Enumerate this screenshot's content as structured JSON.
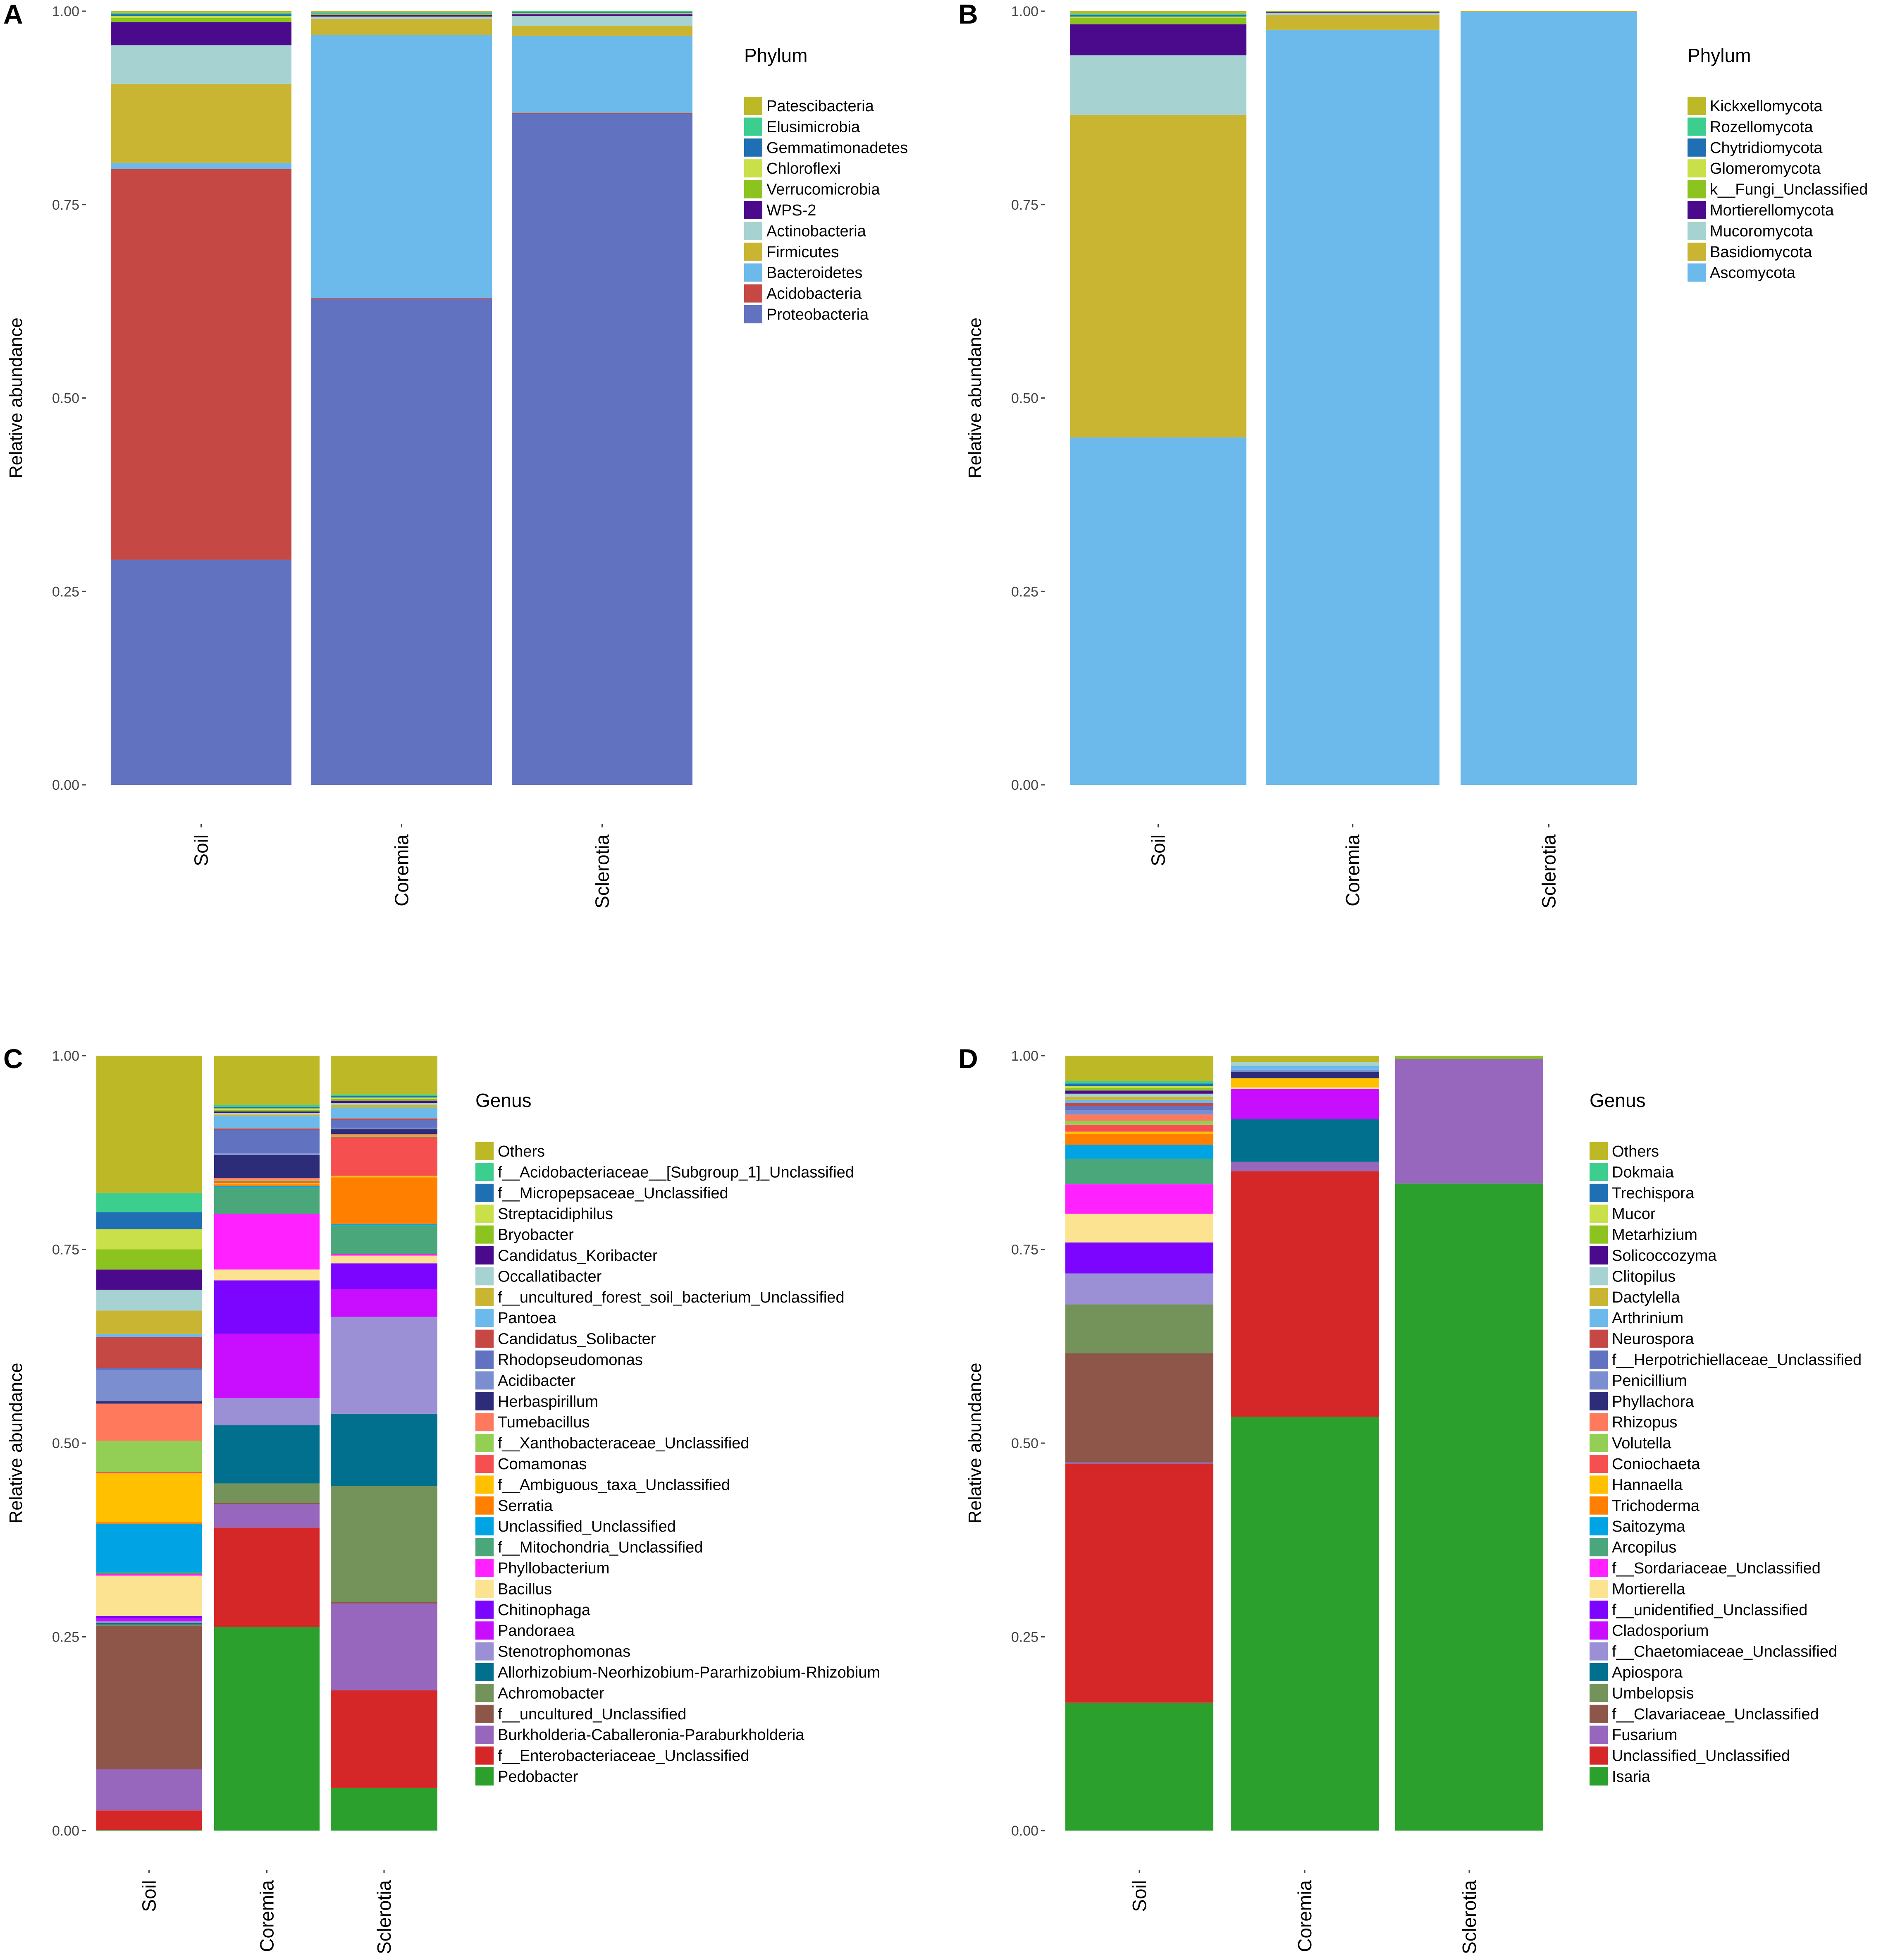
{
  "figure": {
    "y_ticks": [
      "0.00",
      "0.25",
      "0.50",
      "0.75",
      "1.00"
    ],
    "y_label": "Relative abundance"
  },
  "chart_data": [
    {
      "panel": "A",
      "type": "bar",
      "stacked": true,
      "title": "",
      "xlabel": "",
      "ylabel": "Relative abundance",
      "ylim": [
        0,
        1
      ],
      "categories": [
        "Soil",
        "Coremia",
        "Sclerotia"
      ],
      "legend_title": "Phylum",
      "legend_position": "right",
      "series": [
        {
          "name": "Patescibacteria",
          "color": "#BDB826",
          "values": [
            0.002,
            0.001,
            0.001
          ]
        },
        {
          "name": "Elusimicrobia",
          "color": "#3CCE8F",
          "values": [
            0.002,
            0.001,
            0.001
          ]
        },
        {
          "name": "Gemmatimonadetes",
          "color": "#1F6FB4",
          "values": [
            0.002,
            0.001,
            0.001
          ]
        },
        {
          "name": "Chloroflexi",
          "color": "#C9E04A",
          "values": [
            0.003,
            0.001,
            0.001
          ]
        },
        {
          "name": "Verrucomicrobia",
          "color": "#8CC31E",
          "values": [
            0.005,
            0.001,
            0.001
          ]
        },
        {
          "name": "WPS-2",
          "color": "#4B0A8C",
          "values": [
            0.03,
            0.002,
            0.002
          ]
        },
        {
          "name": "Actinobacteria",
          "color": "#A6D3D1",
          "values": [
            0.05,
            0.003,
            0.013
          ]
        },
        {
          "name": "Firmicutes",
          "color": "#C9B531",
          "values": [
            0.102,
            0.021,
            0.013
          ]
        },
        {
          "name": "Bacteroidetes",
          "color": "#6CBAEB",
          "values": [
            0.008,
            0.34,
            0.1
          ]
        },
        {
          "name": "Acidobacteria",
          "color": "#C54845",
          "values": [
            0.505,
            0.001,
            0.001
          ]
        },
        {
          "name": "Proteobacteria",
          "color": "#6173C0",
          "values": [
            0.291,
            0.628,
            0.867
          ]
        }
      ]
    },
    {
      "panel": "B",
      "type": "bar",
      "stacked": true,
      "title": "",
      "xlabel": "",
      "ylabel": "Relative abundance",
      "ylim": [
        0,
        1
      ],
      "categories": [
        "Soil",
        "Coremia",
        "Sclerotia"
      ],
      "legend_title": "Phylum",
      "legend_position": "right",
      "series": [
        {
          "name": "Kickxellomycota",
          "color": "#BDB826",
          "values": [
            0.003,
            0.0,
            0.0
          ]
        },
        {
          "name": "Rozellomycota",
          "color": "#3CCE8F",
          "values": [
            0.002,
            0.0,
            0.0
          ]
        },
        {
          "name": "Chytridiomycota",
          "color": "#1F6FB4",
          "values": [
            0.002,
            0.0,
            0.0
          ]
        },
        {
          "name": "Glomeromycota",
          "color": "#C9E04A",
          "values": [
            0.002,
            0.0,
            0.0
          ]
        },
        {
          "name": "k__Fungi_Unclassified",
          "color": "#8CC31E",
          "values": [
            0.008,
            0.001,
            0.0
          ]
        },
        {
          "name": "Mortierellomycota",
          "color": "#4B0A8C",
          "values": [
            0.04,
            0.001,
            0.0
          ]
        },
        {
          "name": "Mucoromycota",
          "color": "#A6D3D1",
          "values": [
            0.077,
            0.003,
            0.0
          ]
        },
        {
          "name": "Basidiomycota",
          "color": "#C9B531",
          "values": [
            0.417,
            0.019,
            0.001
          ]
        },
        {
          "name": "Ascomycota",
          "color": "#6CBAEB",
          "values": [
            0.449,
            0.976,
            0.999
          ]
        }
      ]
    },
    {
      "panel": "C",
      "type": "bar",
      "stacked": true,
      "title": "",
      "xlabel": "",
      "ylabel": "Relative abundance",
      "ylim": [
        0,
        1
      ],
      "categories": [
        "Soil",
        "Coremia",
        "Sclerotia"
      ],
      "legend_title": "Genus",
      "legend_position": "right",
      "series": [
        {
          "name": "Others",
          "color": "#BDB826",
          "values": [
            0.2,
            0.07,
            0.063
          ]
        },
        {
          "name": "f__Acidobacteriaceae__[Subgroup_1]_Unclassified",
          "color": "#3CCE8F",
          "values": [
            0.025,
            0.002,
            0.002
          ]
        },
        {
          "name": "f__Micropepsaceae_Unclassified",
          "color": "#1F6FB4",
          "values": [
            0.022,
            0.002,
            0.002
          ]
        },
        {
          "name": "Streptacidiphilus",
          "color": "#C9E04A",
          "values": [
            0.026,
            0.002,
            0.002
          ]
        },
        {
          "name": "Bryobacter",
          "color": "#8CC31E",
          "values": [
            0.026,
            0.002,
            0.002
          ]
        },
        {
          "name": "Candidatus_Koribacter",
          "color": "#4B0A8C",
          "values": [
            0.026,
            0.002,
            0.003
          ]
        },
        {
          "name": "Occallatibacter",
          "color": "#A6D3D1",
          "values": [
            0.027,
            0.002,
            0.003
          ]
        },
        {
          "name": "f__uncultured_forest_soil_bacterium_Unclassified",
          "color": "#C9B531",
          "values": [
            0.03,
            0.002,
            0.003
          ]
        },
        {
          "name": "Pantoea",
          "color": "#6CBAEB",
          "values": [
            0.004,
            0.016,
            0.014
          ]
        },
        {
          "name": "Candidatus_Solibacter",
          "color": "#C54845",
          "values": [
            0.04,
            0.002,
            0.002
          ]
        },
        {
          "name": "Rhodopseudomonas",
          "color": "#6173C0",
          "values": [
            0.003,
            0.03,
            0.01
          ]
        },
        {
          "name": "Acidibacter",
          "color": "#7B8FD0",
          "values": [
            0.04,
            0.002,
            0.002
          ]
        },
        {
          "name": "Herbaspirillum",
          "color": "#2C2C78",
          "values": [
            0.003,
            0.03,
            0.006
          ]
        },
        {
          "name": "Tumebacillus",
          "color": "#FF7A5C",
          "values": [
            0.048,
            0.002,
            0.002
          ]
        },
        {
          "name": "f__Xanthobacteraceae_Unclassified",
          "color": "#94CF55",
          "values": [
            0.04,
            0.002,
            0.002
          ]
        },
        {
          "name": "Comamonas",
          "color": "#F5504F",
          "values": [
            0.002,
            0.002,
            0.05
          ]
        },
        {
          "name": "f__Ambiguous_taxa_Unclassified",
          "color": "#FFC000",
          "values": [
            0.063,
            0.002,
            0.002
          ]
        },
        {
          "name": "Serratia",
          "color": "#FF7F00",
          "values": [
            0.002,
            0.002,
            0.06
          ]
        },
        {
          "name": "Unclassified_Unclassified",
          "color": "#00A4E4",
          "values": [
            0.062,
            0.002,
            0.002
          ]
        },
        {
          "name": "f__Mitochondria_Unclassified",
          "color": "#4AA77B",
          "values": [
            0.003,
            0.034,
            0.037
          ]
        },
        {
          "name": "Phyllobacterium",
          "color": "#FF21FF",
          "values": [
            0.002,
            0.072,
            0.002
          ]
        },
        {
          "name": "Bacillus",
          "color": "#FCE391",
          "values": [
            0.052,
            0.014,
            0.01
          ]
        },
        {
          "name": "Chitinophaga",
          "color": "#7B05FF",
          "values": [
            0.003,
            0.069,
            0.033
          ]
        },
        {
          "name": "Pandoraea",
          "color": "#C90DFF",
          "values": [
            0.004,
            0.083,
            0.036
          ]
        },
        {
          "name": "Stenotrophomonas",
          "color": "#9B8FD6",
          "values": [
            0.002,
            0.035,
            0.125
          ]
        },
        {
          "name": "Allorhizobium-Neorhizobium-Pararhizobium-Rhizobium",
          "color": "#00708E",
          "values": [
            0.002,
            0.075,
            0.093
          ]
        },
        {
          "name": "Achromobacter",
          "color": "#73935A",
          "values": [
            0.002,
            0.025,
            0.15
          ]
        },
        {
          "name": "f__uncultured_Unclassified",
          "color": "#8E5549",
          "values": [
            0.185,
            0.002,
            0.002
          ]
        },
        {
          "name": "Burkholderia-Caballeronia-Paraburkholderia",
          "color": "#9767BD",
          "values": [
            0.053,
            0.03,
            0.112
          ]
        },
        {
          "name": "f__Enterobacteriaceae_Unclassified",
          "color": "#D62728",
          "values": [
            0.025,
            0.128,
            0.126
          ]
        },
        {
          "name": "Pedobacter",
          "color": "#2CA02C",
          "values": [
            0.001,
            0.263,
            0.055
          ]
        }
      ]
    },
    {
      "panel": "D",
      "type": "bar",
      "stacked": true,
      "title": "",
      "xlabel": "",
      "ylabel": "Relative abundance",
      "ylim": [
        0,
        1
      ],
      "categories": [
        "Soil",
        "Coremia",
        "Sclerotia"
      ],
      "legend_title": "Genus",
      "legend_position": "right",
      "series": [
        {
          "name": "Others",
          "color": "#BDB826",
          "values": [
            0.038,
            0.008,
            0.0
          ]
        },
        {
          "name": "Dokmaia",
          "color": "#3CCE8F",
          "values": [
            0.003,
            0.0,
            0.0
          ]
        },
        {
          "name": "Trechispora",
          "color": "#1F6FB4",
          "values": [
            0.003,
            0.0,
            0.0
          ]
        },
        {
          "name": "Mucor",
          "color": "#C9E04A",
          "values": [
            0.003,
            0.0,
            0.0
          ]
        },
        {
          "name": "Metarhizium",
          "color": "#8CC31E",
          "values": [
            0.003,
            0.0,
            0.004
          ]
        },
        {
          "name": "Solicoccozyma",
          "color": "#4B0A8C",
          "values": [
            0.004,
            0.0,
            0.0
          ]
        },
        {
          "name": "Clitopilus",
          "color": "#A6D3D1",
          "values": [
            0.004,
            0.005,
            0.0
          ]
        },
        {
          "name": "Dactylella",
          "color": "#C9B531",
          "values": [
            0.004,
            0.0,
            0.0
          ]
        },
        {
          "name": "Arthrinium",
          "color": "#6CBAEB",
          "values": [
            0.004,
            0.005,
            0.0
          ]
        },
        {
          "name": "Neurospora",
          "color": "#C54845",
          "values": [
            0.004,
            0.0,
            0.0
          ]
        },
        {
          "name": "f__Herpotrichiellaceae_Unclassified",
          "color": "#6173C0",
          "values": [
            0.005,
            0.0,
            0.0
          ]
        },
        {
          "name": "Penicillium",
          "color": "#7B8FD0",
          "values": [
            0.006,
            0.003,
            0.0
          ]
        },
        {
          "name": "Phyllachora",
          "color": "#2C2C78",
          "values": [
            0.0,
            0.008,
            0.0
          ]
        },
        {
          "name": "Rhizopus",
          "color": "#FF7A5C",
          "values": [
            0.008,
            0.0,
            0.0
          ]
        },
        {
          "name": "Volutella",
          "color": "#94CF55",
          "values": [
            0.005,
            0.0,
            0.0
          ]
        },
        {
          "name": "Coniochaeta",
          "color": "#F5504F",
          "values": [
            0.009,
            0.0,
            0.0
          ]
        },
        {
          "name": "Hannaella",
          "color": "#FFC000",
          "values": [
            0.003,
            0.012,
            0.0
          ]
        },
        {
          "name": "Trichoderma",
          "color": "#FF7F00",
          "values": [
            0.014,
            0.0,
            0.0
          ]
        },
        {
          "name": "Saitozyma",
          "color": "#00A4E4",
          "values": [
            0.018,
            0.0,
            0.0
          ]
        },
        {
          "name": "Arcopilus",
          "color": "#4AA77B",
          "values": [
            0.033,
            0.0,
            0.0
          ]
        },
        {
          "name": "f__Sordariaceae_Unclassified",
          "color": "#FF21FF",
          "values": [
            0.038,
            0.0,
            0.0
          ]
        },
        {
          "name": "Mortierella",
          "color": "#FCE391",
          "values": [
            0.037,
            0.002,
            0.0
          ]
        },
        {
          "name": "f__unidentified_Unclassified",
          "color": "#7B05FF",
          "values": [
            0.04,
            0.0,
            0.0
          ]
        },
        {
          "name": "Cladosporium",
          "color": "#C90DFF",
          "values": [
            0.0,
            0.039,
            0.0
          ]
        },
        {
          "name": "f__Chaetomiaceae_Unclassified",
          "color": "#9B8FD6",
          "values": [
            0.04,
            0.0,
            0.0
          ]
        },
        {
          "name": "Apiospora",
          "color": "#00708E",
          "values": [
            0.0,
            0.055,
            0.0
          ]
        },
        {
          "name": "Umbelopsis",
          "color": "#73935A",
          "values": [
            0.063,
            0.0,
            0.0
          ]
        },
        {
          "name": "f__Clavariaceae_Unclassified",
          "color": "#8E5549",
          "values": [
            0.141,
            0.0,
            0.0
          ]
        },
        {
          "name": "Fusarium",
          "color": "#9767BD",
          "values": [
            0.002,
            0.012,
            0.161
          ]
        },
        {
          "name": "Unclassified_Unclassified",
          "color": "#D62728",
          "values": [
            0.308,
            0.317,
            0.0
          ]
        },
        {
          "name": "Isaria",
          "color": "#2CA02C",
          "values": [
            0.165,
            0.534,
            0.835
          ]
        }
      ]
    }
  ]
}
